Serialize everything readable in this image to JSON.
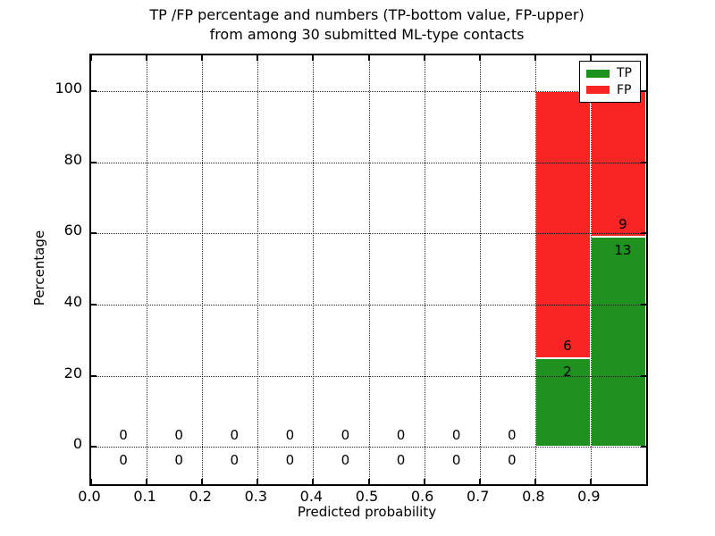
{
  "chart_data": {
    "type": "bar",
    "stacked": true,
    "title_line1": "TP /FP percentage and numbers (TP-bottom value, FP-upper)",
    "title_line2": "from among 30 submitted ML-type contacts",
    "xlabel": "Predicted probability",
    "ylabel": "Percentage",
    "total_contacts": 30,
    "xlim": [
      0.0,
      1.0
    ],
    "ylim": [
      -10.5,
      110
    ],
    "grid": true,
    "legend_position": "upper right",
    "xticks": [
      "0.0",
      "0.1",
      "0.2",
      "0.3",
      "0.4",
      "0.5",
      "0.6",
      "0.7",
      "0.8",
      "0.9"
    ],
    "yticks": [
      "0",
      "20",
      "40",
      "60",
      "80",
      "100"
    ],
    "colors": {
      "tp": "#1e911e",
      "fp": "#f92525"
    },
    "legend_entries": [
      {
        "label": "TP",
        "color": "#1e911e"
      },
      {
        "label": "FP",
        "color": "#f92525"
      }
    ],
    "bins": [
      {
        "range": [
          0.0,
          0.1
        ],
        "tp": 0,
        "fp": 0,
        "tp_pct": 0,
        "fp_pct": 0
      },
      {
        "range": [
          0.1,
          0.2
        ],
        "tp": 0,
        "fp": 0,
        "tp_pct": 0,
        "fp_pct": 0
      },
      {
        "range": [
          0.2,
          0.3
        ],
        "tp": 0,
        "fp": 0,
        "tp_pct": 0,
        "fp_pct": 0
      },
      {
        "range": [
          0.3,
          0.4
        ],
        "tp": 0,
        "fp": 0,
        "tp_pct": 0,
        "fp_pct": 0
      },
      {
        "range": [
          0.4,
          0.5
        ],
        "tp": 0,
        "fp": 0,
        "tp_pct": 0,
        "fp_pct": 0
      },
      {
        "range": [
          0.5,
          0.6
        ],
        "tp": 0,
        "fp": 0,
        "tp_pct": 0,
        "fp_pct": 0
      },
      {
        "range": [
          0.6,
          0.7
        ],
        "tp": 0,
        "fp": 0,
        "tp_pct": 0,
        "fp_pct": 0
      },
      {
        "range": [
          0.7,
          0.8
        ],
        "tp": 0,
        "fp": 0,
        "tp_pct": 0,
        "fp_pct": 0
      },
      {
        "range": [
          0.8,
          0.9
        ],
        "tp": 2,
        "fp": 6,
        "tp_pct": 25.0,
        "fp_pct": 75.0
      },
      {
        "range": [
          0.9,
          1.0
        ],
        "tp": 13,
        "fp": 9,
        "tp_pct": 59.09,
        "fp_pct": 40.91
      }
    ]
  }
}
